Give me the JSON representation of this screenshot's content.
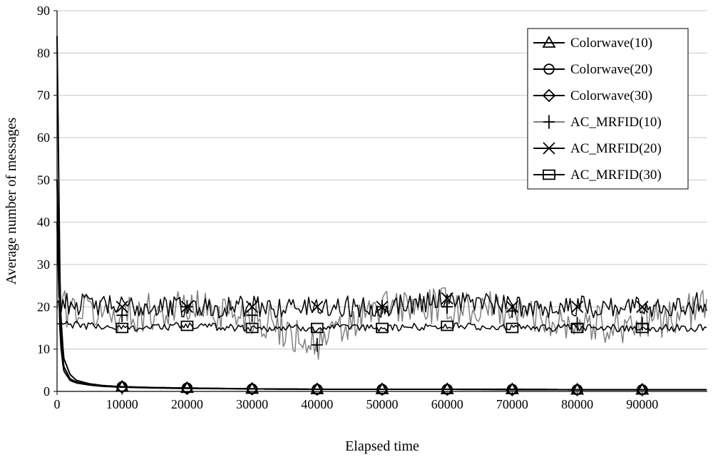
{
  "chart_data": {
    "type": "line",
    "title": "",
    "xlabel": "Elapsed time",
    "ylabel": "Average number of messages",
    "xlim": [
      0,
      100000
    ],
    "ylim": [
      0,
      90
    ],
    "x_ticks": [
      0,
      10000,
      20000,
      30000,
      40000,
      50000,
      60000,
      70000,
      80000,
      90000
    ],
    "y_ticks": [
      0,
      10,
      20,
      30,
      40,
      50,
      60,
      70,
      80,
      90
    ],
    "grid": "horizontal",
    "legend_position": "top-right",
    "series": [
      {
        "name": "Colorwave(10)",
        "marker": "triangle",
        "color": "#000000",
        "x": [
          0,
          500,
          1000,
          2000,
          3000,
          5000,
          7000,
          10000,
          15000,
          20000,
          30000,
          40000,
          50000,
          60000,
          70000,
          80000,
          90000,
          100000
        ],
        "values": [
          84,
          20,
          8,
          4,
          2.6,
          1.8,
          1.4,
          1.1,
          0.9,
          0.8,
          0.6,
          0.5,
          0.5,
          0.5,
          0.5,
          0.4,
          0.4,
          0.4
        ]
      },
      {
        "name": "Colorwave(20)",
        "marker": "circle",
        "color": "#000000",
        "x": [
          0,
          500,
          1000,
          2000,
          3000,
          5000,
          7000,
          10000,
          15000,
          20000,
          30000,
          40000,
          50000,
          60000,
          70000,
          80000,
          90000,
          100000
        ],
        "values": [
          50,
          15,
          6,
          3,
          2.2,
          1.6,
          1.3,
          1.1,
          0.9,
          0.8,
          0.6,
          0.5,
          0.5,
          0.5,
          0.5,
          0.4,
          0.4,
          0.4
        ]
      },
      {
        "name": "Colorwave(30)",
        "marker": "diamond",
        "color": "#000000",
        "x": [
          0,
          500,
          1000,
          2000,
          3000,
          5000,
          7000,
          10000,
          15000,
          20000,
          30000,
          40000,
          50000,
          60000,
          70000,
          80000,
          90000,
          100000
        ],
        "values": [
          40,
          12,
          5,
          2.6,
          2,
          1.5,
          1.2,
          1,
          0.8,
          0.7,
          0.6,
          0.5,
          0.5,
          0.5,
          0.4,
          0.4,
          0.4,
          0.4
        ]
      },
      {
        "name": "AC_MRFID(10)",
        "marker": "plus",
        "color": "#808080",
        "x": [
          0,
          10000,
          20000,
          30000,
          40000,
          50000,
          60000,
          70000,
          80000,
          90000,
          100000
        ],
        "values": [
          20,
          18,
          20,
          18,
          11,
          20,
          20,
          19,
          16,
          16,
          20
        ],
        "noise": 4.5
      },
      {
        "name": "AC_MRFID(20)",
        "marker": "x",
        "color": "#000000",
        "x": [
          0,
          10000,
          20000,
          30000,
          40000,
          50000,
          60000,
          70000,
          80000,
          90000,
          100000
        ],
        "values": [
          21,
          20,
          20,
          20,
          20,
          20,
          22,
          20,
          20,
          20,
          21
        ],
        "noise": 2.6
      },
      {
        "name": "AC_MRFID(30)",
        "marker": "square",
        "color": "#000000",
        "x": [
          0,
          10000,
          20000,
          30000,
          40000,
          50000,
          60000,
          70000,
          80000,
          90000,
          100000
        ],
        "values": [
          16,
          15,
          15.5,
          15,
          15,
          15,
          15.5,
          15,
          15,
          15,
          15
        ],
        "noise": 0.9
      }
    ]
  }
}
